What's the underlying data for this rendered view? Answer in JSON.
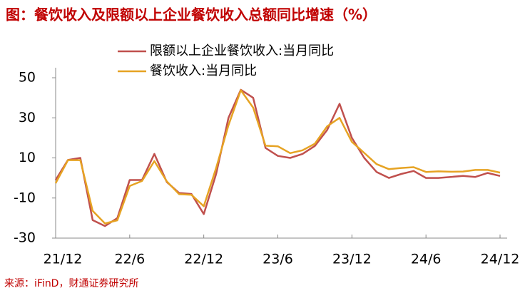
{
  "chart_data": {
    "type": "line",
    "title": "图：餐饮收入及限额以上企业餐饮收入总额同比增速（%）",
    "source": "来源：iFinD，财通证券研究所",
    "categories": [
      "21/12",
      null,
      null,
      null,
      null,
      null,
      "22/6",
      null,
      null,
      null,
      null,
      null,
      "22/12",
      null,
      null,
      null,
      null,
      null,
      "23/6",
      null,
      null,
      null,
      null,
      null,
      "23/12",
      null,
      null,
      null,
      null,
      null,
      "24/6",
      null,
      null,
      null,
      null,
      null,
      "24/12"
    ],
    "series": [
      {
        "name": "限额以上企业餐饮收入:当月同比",
        "color": "#c0504d",
        "values": [
          -1,
          9,
          10,
          -21,
          -24,
          -20,
          -1,
          -1,
          12,
          -2,
          -7.5,
          -8,
          -18,
          2,
          30,
          44,
          40,
          15,
          11,
          10,
          12,
          16,
          24,
          37,
          20,
          10,
          3,
          0,
          2,
          3.5,
          0,
          0,
          0.5,
          1,
          0.5,
          2.5,
          1
        ]
      },
      {
        "name": "餐饮收入:当月同比",
        "color": "#e6a323",
        "values": [
          -2.6,
          8.9,
          8.9,
          -16.4,
          -22.7,
          -21.1,
          -4,
          -1.5,
          8.4,
          -1.7,
          -8.1,
          -8.4,
          -14.1,
          5,
          26.3,
          43.8,
          35.1,
          16.1,
          15.8,
          12.4,
          13.8,
          17.1,
          25.8,
          30,
          18,
          12.5,
          6.9,
          4.4,
          5,
          5.4,
          3,
          3.3,
          3.1,
          3.2,
          4,
          4,
          2.7
        ]
      }
    ],
    "ylim": [
      -30,
      55
    ],
    "yticks": [
      -30,
      -10,
      10,
      30,
      50
    ]
  }
}
